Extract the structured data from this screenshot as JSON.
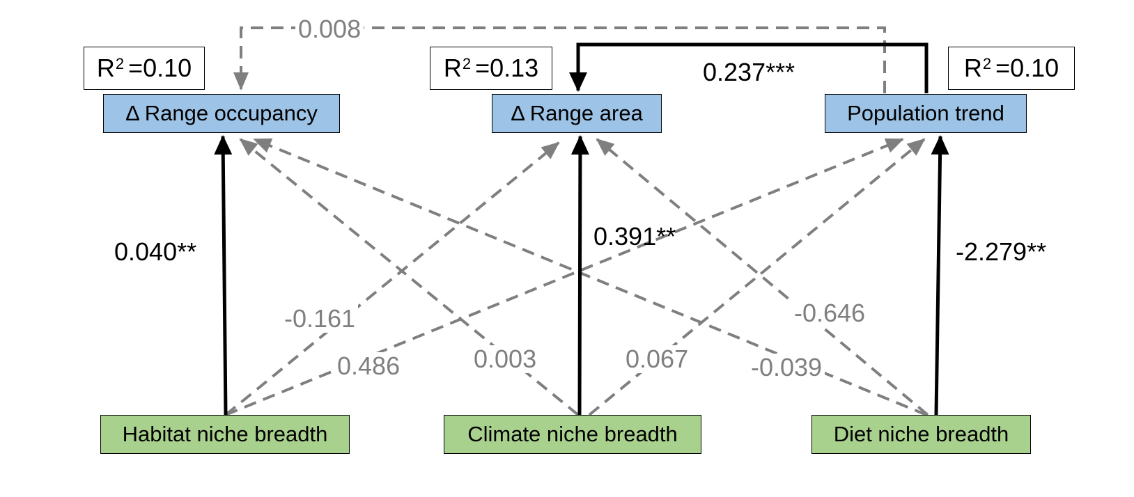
{
  "nodes": {
    "range_occupancy": {
      "label": "Δ Range occupancy",
      "r2": "0.10"
    },
    "range_area": {
      "label": "Δ Range area",
      "r2": "0.13"
    },
    "population_trend": {
      "label": "Population trend",
      "r2": "0.10"
    },
    "habitat_niche": {
      "label": "Habitat niche breadth"
    },
    "climate_niche": {
      "label": "Climate niche breadth"
    },
    "diet_niche": {
      "label": "Diet niche breadth"
    }
  },
  "r2_label": "R",
  "r2_sup": "2",
  "r2_eq": "= ",
  "paths": [
    {
      "from": "population_trend",
      "to": "range_occupancy",
      "coef": "0.008",
      "significant": false
    },
    {
      "from": "population_trend",
      "to": "range_area",
      "coef": "0.237***",
      "significant": true
    },
    {
      "from": "habitat_niche",
      "to": "range_occupancy",
      "coef": "0.040**",
      "significant": true
    },
    {
      "from": "climate_niche",
      "to": "range_area",
      "coef": "0.391**",
      "significant": true
    },
    {
      "from": "diet_niche",
      "to": "population_trend",
      "coef": "-2.279**",
      "significant": true
    },
    {
      "from": "habitat_niche",
      "to": "range_area",
      "coef": "-0.161",
      "significant": false
    },
    {
      "from": "habitat_niche",
      "to": "population_trend",
      "coef": "0.486",
      "significant": false
    },
    {
      "from": "climate_niche",
      "to": "range_occupancy",
      "coef": "0.003",
      "significant": false
    },
    {
      "from": "climate_niche",
      "to": "population_trend",
      "coef": "0.067",
      "significant": false
    },
    {
      "from": "diet_niche",
      "to": "range_area",
      "coef": "-0.646",
      "significant": false
    },
    {
      "from": "diet_niche",
      "to": "range_occupancy",
      "coef": "-0.039",
      "significant": false
    }
  ],
  "colors": {
    "response": "#9dc3e6",
    "predictor": "#a9d18e",
    "significant": "#000000",
    "nonsignificant": "#7f7f7f"
  }
}
